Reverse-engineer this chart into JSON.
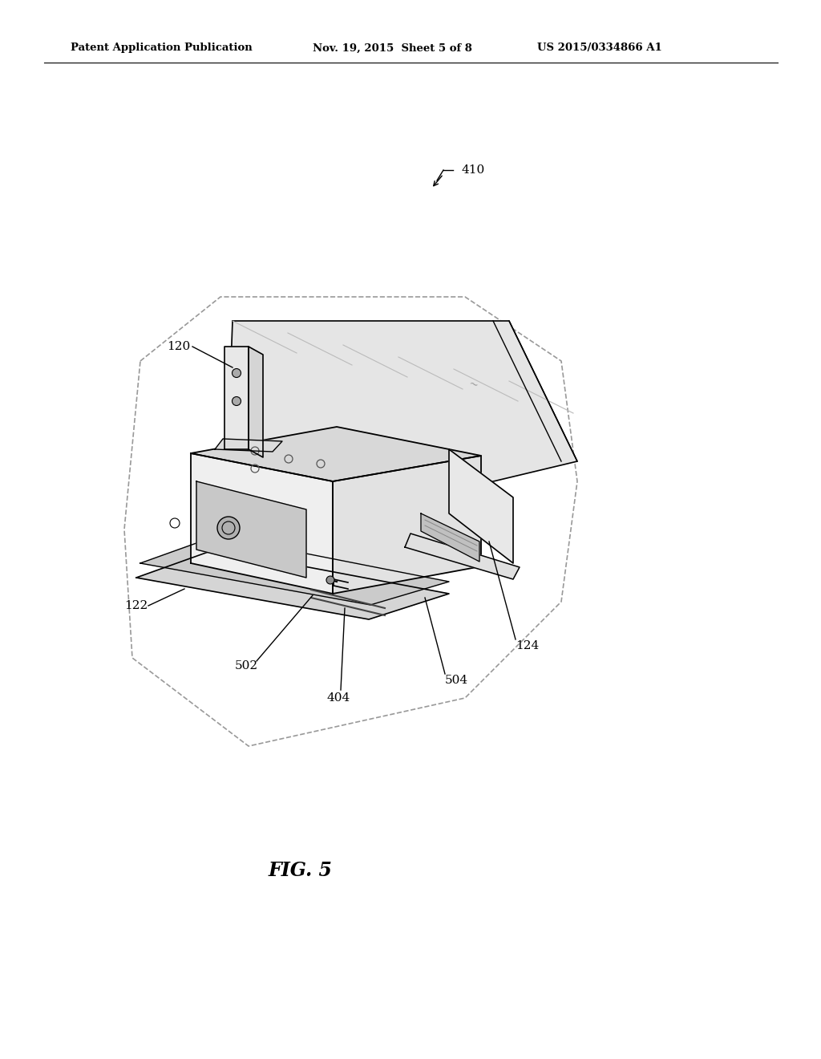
{
  "background_color": "#ffffff",
  "header_left": "Patent Application Publication",
  "header_center": "Nov. 19, 2015  Sheet 5 of 8",
  "header_right": "US 2015/0334866 A1",
  "figure_label": "FIG. 5",
  "text_color": "#000000",
  "line_color": "#000000",
  "gray_light": "#e8e8e8",
  "gray_mid": "#d0d0d0",
  "gray_dark": "#b0b0b0",
  "circle_color": "#aaaaaa"
}
